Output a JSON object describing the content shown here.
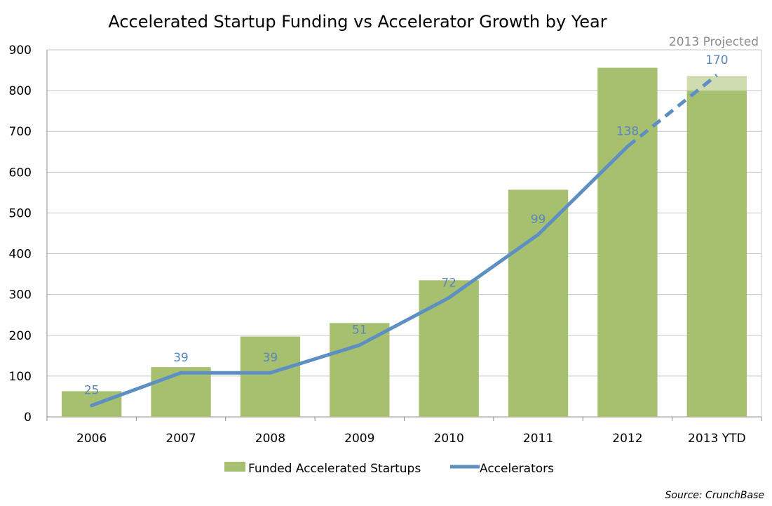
{
  "chart_data": {
    "type": "bar",
    "title": "Accelerated Startup Funding vs Accelerator Growth by Year",
    "categories": [
      "2006",
      "2007",
      "2008",
      "2009",
      "2010",
      "2011",
      "2012",
      "2013 YTD"
    ],
    "ylim": [
      0,
      900
    ],
    "yticks": [
      "0",
      "100",
      "200",
      "300",
      "400",
      "500",
      "600",
      "700",
      "800",
      "900"
    ],
    "grid": true,
    "series": [
      {
        "name": "Funded Accelerated Startups",
        "type": "bar",
        "color": "#a6c06f",
        "values": [
          63,
          122,
          197,
          230,
          335,
          557,
          856,
          800
        ],
        "projected_value": 836,
        "projected_color": "#cfdcaf"
      },
      {
        "name": "Accelerators",
        "type": "line",
        "color": "#5e8fc2",
        "values": [
          25,
          39,
          39,
          51,
          72,
          99,
          138,
          170
        ],
        "plotted_y": [
          28,
          108,
          108,
          176,
          292,
          447,
          663,
          838
        ],
        "labels": [
          "25",
          "39",
          "39",
          "51",
          "72",
          "99",
          "138",
          "170"
        ],
        "projected_from_index": 6
      }
    ],
    "annotation": "2013 Projected",
    "legend_position": "bottom"
  },
  "source": "Source: CrunchBase"
}
